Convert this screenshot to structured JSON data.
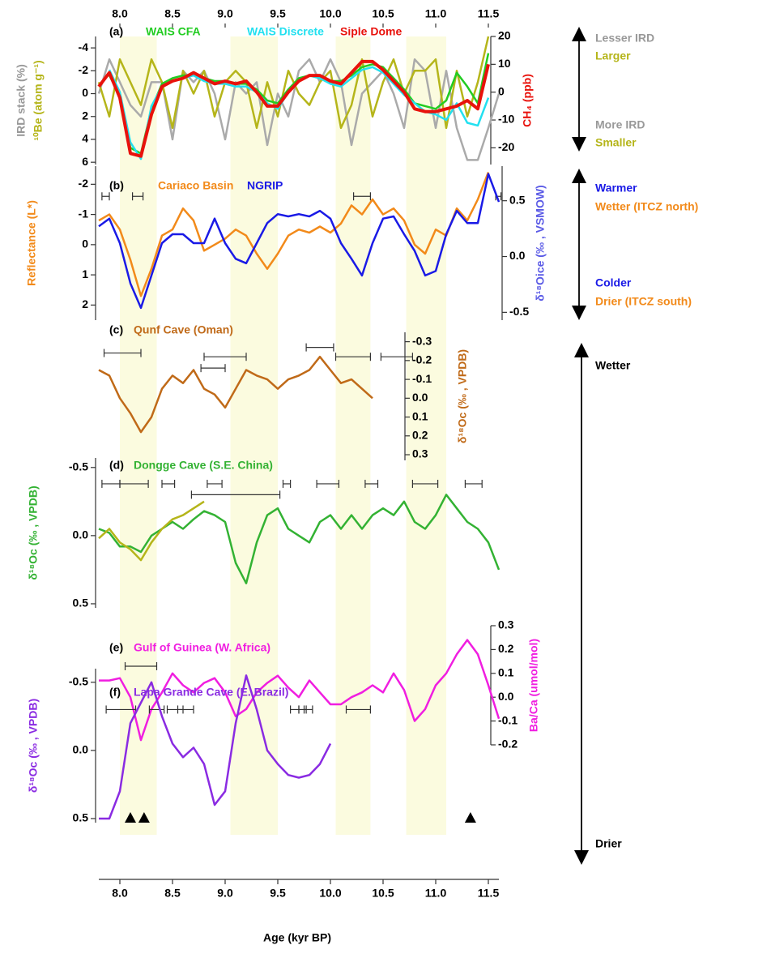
{
  "shaded_intervals": [
    [
      8.0,
      8.35
    ],
    [
      9.05,
      9.5
    ],
    [
      10.05,
      10.38
    ],
    [
      10.72,
      11.1
    ]
  ],
  "annotations": [
    {
      "text": "Lesser IRD",
      "color": "#999999"
    },
    {
      "text": "Larger",
      "color": "#b5b51a"
    },
    {
      "text": "More IRD",
      "color": "#999999"
    },
    {
      "text": "Smaller",
      "color": "#b5b51a"
    },
    {
      "text": "Warmer",
      "color": "#1a1ae6"
    },
    {
      "text": "Wetter (ITCZ north)",
      "color": "#f28a1a"
    },
    {
      "text": "Colder",
      "color": "#1a1ae6"
    },
    {
      "text": "Drier (ITCZ south)",
      "color": "#f28a1a"
    },
    {
      "text": "Wetter",
      "color": "#000000"
    },
    {
      "text": "Drier",
      "color": "#000000"
    }
  ],
  "chart_data": [
    {
      "type": "line",
      "label": "(a)",
      "x": [
        7.8,
        7.9,
        8.0,
        8.1,
        8.2,
        8.3,
        8.4,
        8.5,
        8.6,
        8.7,
        8.8,
        8.9,
        9.0,
        9.1,
        9.2,
        9.3,
        9.4,
        9.5,
        9.6,
        9.7,
        9.8,
        9.9,
        10.0,
        10.1,
        10.2,
        10.3,
        10.4,
        10.5,
        10.6,
        10.7,
        10.8,
        10.9,
        11.0,
        11.1,
        11.2,
        11.3,
        11.4,
        11.5,
        11.6
      ],
      "xlim": [
        7.8,
        11.6
      ],
      "xticks": [
        {
          "value": 8,
          "label": "8.0"
        },
        8.5,
        {
          "value": 9,
          "label": "9.0"
        },
        9.5,
        {
          "value": 10,
          "label": "10.0"
        },
        10.5,
        {
          "value": 11,
          "label": "11.0"
        },
        11.5
      ],
      "ylim": [
        6.2,
        -5
      ],
      "yticks": [
        -4,
        -2,
        0,
        2,
        4,
        6
      ],
      "y2lim": [
        -26,
        20
      ],
      "y2ticks": [
        20,
        10,
        0,
        -10,
        -20
      ],
      "y_labels": [
        {
          "text": "IRD stack (%)",
          "color": "#999999"
        },
        {
          "text": "¹⁰Be (atom g⁻¹)",
          "color": "#b5b51a"
        },
        {
          "text": "CH₄ (ppb)",
          "color": "#e8120c"
        }
      ],
      "series": [
        {
          "values": [
            0,
            -3,
            -1,
            1,
            2,
            -1,
            -1,
            4,
            -2,
            -1,
            -2,
            0,
            4,
            -1,
            0,
            -1,
            4.5,
            0,
            2,
            -2,
            -3,
            -1,
            -3,
            -1,
            4.5,
            0,
            -1,
            -2,
            0,
            3,
            -3,
            -2,
            3,
            -2,
            3,
            5.8,
            5.8,
            3,
            0
          ],
          "color": "#aaaaaa"
        },
        {
          "values": [
            -1,
            2,
            -3,
            -1,
            1,
            -3,
            -1,
            3,
            -2,
            0,
            -2,
            2,
            -1,
            -2,
            -1,
            3,
            -1,
            2,
            -2,
            0,
            1,
            -1,
            -2,
            3,
            1,
            -3,
            2,
            -1,
            -3,
            0,
            -2,
            -2,
            -3,
            3,
            -2,
            2,
            -1,
            -5,
            null
          ],
          "color": "#b5b51a"
        },
        {
          "name": "WAIS CFA",
          "axis": "y2",
          "color": "#22cc22",
          "values": [
            null,
            6,
            -1,
            -20,
            -22,
            -6,
            3,
            5,
            6,
            6,
            5,
            4,
            4,
            3,
            3,
            1,
            -3,
            -4,
            1,
            5,
            6,
            5,
            4,
            4,
            6,
            9,
            10,
            9,
            5,
            1,
            -4,
            -5,
            -6,
            -3,
            7,
            2,
            -4,
            14,
            null
          ]
        },
        {
          "name": "WAIS Discrete",
          "axis": "y2",
          "color": "#22e0f0",
          "values": [
            null,
            8,
            0,
            -18,
            -24,
            -5,
            2,
            4,
            5,
            6,
            4,
            3,
            3,
            2,
            2,
            0,
            -4,
            -6,
            0,
            4,
            6,
            5,
            3,
            2,
            5,
            8,
            9,
            7,
            3,
            -1,
            -4,
            -7,
            -8,
            -10,
            -4,
            -11,
            -12,
            -2,
            null
          ]
        },
        {
          "name": "Siple Dome",
          "axis": "y2",
          "color": "#e8120c",
          "values": [
            2,
            7,
            -2,
            -22,
            -23,
            -8,
            2,
            4,
            5,
            7,
            5,
            3,
            4,
            3,
            4,
            0,
            -5,
            -5,
            0,
            4,
            6,
            6,
            4,
            3,
            7,
            11,
            11,
            8,
            4,
            0,
            -6,
            -7,
            -7,
            -6,
            -5,
            -3,
            -6,
            10,
            null
          ]
        }
      ]
    },
    {
      "type": "line",
      "label": "(b)",
      "x": [
        7.8,
        7.9,
        8.0,
        8.1,
        8.2,
        8.3,
        8.4,
        8.5,
        8.6,
        8.7,
        8.8,
        8.9,
        9.0,
        9.1,
        9.2,
        9.3,
        9.4,
        9.5,
        9.6,
        9.7,
        9.8,
        9.9,
        10.0,
        10.1,
        10.2,
        10.3,
        10.4,
        10.5,
        10.6,
        10.7,
        10.8,
        10.9,
        11.0,
        11.1,
        11.2,
        11.3,
        11.4,
        11.5,
        11.6
      ],
      "ylim": [
        2.5,
        -2.6
      ],
      "yticks": [
        -2,
        -1,
        0,
        1,
        2
      ],
      "y2lim": [
        -0.57,
        0.81
      ],
      "y2ticks": [
        0.5,
        {
          "value": 0,
          "label": "0.0"
        },
        -0.5
      ],
      "y_labels": [
        {
          "text": "Reflectance (L*)",
          "color": "#f28a1a"
        },
        {
          "text": "δ¹⁸Oice (‰ , VSMOW)",
          "color": "#5a5ae6"
        }
      ],
      "age_error_bars": [
        [
          7.83,
          7.9,
          -1.6
        ],
        [
          8.12,
          8.22,
          -1.6
        ],
        [
          10.22,
          10.38,
          -1.6
        ],
        [
          11.57,
          11.62,
          -1.6
        ]
      ],
      "series": [
        {
          "name": "Cariaco Basin",
          "color": "#f28a1a",
          "values": [
            -0.8,
            -1.0,
            -0.5,
            0.5,
            1.7,
            0.8,
            -0.3,
            -0.5,
            -1.2,
            -0.8,
            0.2,
            0,
            -0.2,
            -0.5,
            -0.3,
            0.3,
            0.8,
            0.3,
            -0.3,
            -0.5,
            -0.4,
            -0.6,
            -0.4,
            -0.7,
            -1.3,
            -1.0,
            -1.5,
            -1.0,
            -1.2,
            -0.8,
            0,
            0.3,
            -0.5,
            -0.3,
            -1.2,
            -0.8,
            -1.5,
            -2.4,
            null
          ]
        },
        {
          "name": "NGRIP",
          "axis": "y2",
          "color": "#1a1ae6",
          "values": [
            0.27,
            0.34,
            0.12,
            -0.24,
            -0.46,
            -0.17,
            0.12,
            0.2,
            0.2,
            0.12,
            0.12,
            0.34,
            0.12,
            -0.02,
            -0.06,
            0.12,
            0.3,
            0.38,
            0.36,
            0.38,
            0.36,
            0.41,
            0.34,
            0.12,
            -0.02,
            -0.17,
            0.12,
            0.34,
            0.36,
            0.2,
            0.05,
            -0.17,
            -0.13,
            0.2,
            0.41,
            0.3,
            0.3,
            0.74,
            0.49
          ]
        }
      ]
    },
    {
      "type": "line",
      "label": "(c)",
      "title": "Qunf Cave (Oman)",
      "x": [
        7.8,
        7.9,
        8.0,
        8.1,
        8.2,
        8.3,
        8.4,
        8.5,
        8.6,
        8.7,
        8.8,
        8.9,
        9.0,
        9.1,
        9.2,
        9.3,
        9.4,
        9.5,
        9.6,
        9.7,
        9.8,
        9.9,
        10.0,
        10.1,
        10.2,
        10.3,
        10.4,
        10.5,
        10.6,
        10.7,
        10.8,
        10.9,
        11.0,
        11.1,
        11.2,
        11.3,
        11.4,
        11.5,
        11.6
      ],
      "y2lim": [
        0.33,
        -0.35
      ],
      "y2ticks": [
        -0.3,
        -0.2,
        -0.1,
        {
          "value": 0,
          "label": "0.0"
        },
        0.1,
        0.2,
        0.3
      ],
      "y_labels": [
        {
          "text": "δ¹⁸Oc (‰ , VPDB)",
          "color": "#c06a18"
        }
      ],
      "age_error_bars": [
        [
          7.85,
          8.2,
          -0.24
        ],
        [
          8.8,
          9.2,
          -0.22
        ],
        [
          8.77,
          9.0,
          -0.16
        ],
        [
          9.77,
          10.03,
          -0.27
        ],
        [
          10.05,
          10.38,
          -0.22
        ],
        [
          10.48,
          10.78,
          -0.22
        ]
      ],
      "series": [
        {
          "axis": "y2",
          "color": "#c06a18",
          "values": [
            -0.15,
            -0.12,
            0,
            0.08,
            0.18,
            0.1,
            -0.05,
            -0.12,
            -0.08,
            -0.15,
            -0.05,
            -0.02,
            0.05,
            -0.05,
            -0.15,
            -0.12,
            -0.1,
            -0.05,
            -0.1,
            -0.12,
            -0.15,
            -0.22,
            -0.15,
            -0.08,
            -0.1,
            -0.05,
            0,
            null,
            null,
            null,
            null,
            null,
            null,
            null,
            null,
            null,
            null,
            null,
            null
          ]
        }
      ]
    },
    {
      "type": "line",
      "label": "(d)",
      "title": "Dongge Cave (S.E. China)",
      "x": [
        7.8,
        7.9,
        8.0,
        8.1,
        8.2,
        8.3,
        8.4,
        8.5,
        8.6,
        8.7,
        8.8,
        8.9,
        9.0,
        9.1,
        9.2,
        9.3,
        9.4,
        9.5,
        9.6,
        9.7,
        9.8,
        9.9,
        10.0,
        10.1,
        10.2,
        10.3,
        10.4,
        10.5,
        10.6,
        10.7,
        10.8,
        10.9,
        11.0,
        11.1,
        11.2,
        11.3,
        11.4,
        11.5,
        11.6
      ],
      "ylim": [
        0.53,
        -0.57
      ],
      "yticks": [
        -0.5,
        {
          "value": 0,
          "label": "0.0"
        },
        0.5
      ],
      "y_labels": [
        {
          "text": "δ¹⁸Oc (‰ , VPDB)",
          "color": "#33b233"
        }
      ],
      "age_error_bars": [
        [
          7.83,
          8.0,
          -0.38
        ],
        [
          8.0,
          8.27,
          -0.38
        ],
        [
          8.4,
          8.52,
          -0.38
        ],
        [
          8.83,
          8.97,
          -0.38
        ],
        [
          9.55,
          9.62,
          -0.38
        ],
        [
          9.87,
          10.08,
          -0.38
        ],
        [
          10.33,
          10.45,
          -0.38
        ],
        [
          10.78,
          11.02,
          -0.38
        ],
        [
          11.28,
          11.44,
          -0.38
        ],
        [
          8.68,
          9.52,
          -0.3
        ]
      ],
      "series": [
        {
          "color": "#33b233",
          "values": [
            -0.05,
            -0.02,
            0.08,
            0.08,
            0.12,
            0.0,
            -0.05,
            -0.1,
            -0.05,
            -0.12,
            -0.18,
            -0.15,
            -0.1,
            0.2,
            0.35,
            0.05,
            -0.15,
            -0.2,
            -0.05,
            0.0,
            0.05,
            -0.1,
            -0.15,
            -0.05,
            -0.15,
            -0.05,
            -0.15,
            -0.2,
            -0.15,
            -0.25,
            -0.1,
            -0.05,
            -0.15,
            -0.3,
            -0.2,
            -0.1,
            -0.05,
            0.05,
            0.25
          ]
        },
        {
          "color": "#b5b51a",
          "values": [
            0.02,
            -0.05,
            0.05,
            0.1,
            0.18,
            0.05,
            -0.05,
            -0.12,
            -0.15,
            -0.2,
            -0.25,
            null,
            null,
            null,
            null,
            null,
            null,
            null,
            null,
            null,
            null,
            null,
            null,
            null,
            null,
            null,
            null,
            null,
            null,
            null,
            null,
            null,
            null,
            null,
            null,
            null,
            null,
            null,
            null
          ]
        }
      ]
    },
    {
      "type": "line",
      "label": "(e)",
      "title": "Gulf of Guinea (W. Africa)",
      "x": [
        7.8,
        7.9,
        8.0,
        8.1,
        8.2,
        8.3,
        8.4,
        8.5,
        8.6,
        8.7,
        8.8,
        8.9,
        9.0,
        9.1,
        9.2,
        9.3,
        9.4,
        9.5,
        9.6,
        9.7,
        9.8,
        9.9,
        10.0,
        10.1,
        10.2,
        10.3,
        10.4,
        10.5,
        10.6,
        10.7,
        10.8,
        10.9,
        11.0,
        11.1,
        11.2,
        11.3,
        11.4,
        11.5,
        11.6
      ],
      "y2lim": [
        -0.2,
        0.3
      ],
      "y2ticks": [
        0.3,
        0.2,
        0.1,
        {
          "value": 0,
          "label": "0.0"
        },
        -0.1,
        -0.2
      ],
      "y_labels": [
        {
          "text": "Ba/Ca (umol/mol)",
          "color": "#f01ee0"
        }
      ],
      "age_error_bars": [
        [
          8.05,
          8.35,
          0.13
        ]
      ],
      "series": [
        {
          "axis": "y2",
          "color": "#f01ee0",
          "values": [
            0.07,
            0.07,
            0.08,
            0.0,
            -0.18,
            -0.05,
            0.02,
            0.1,
            0.05,
            0.02,
            0.06,
            0.08,
            0.02,
            -0.08,
            -0.05,
            0.02,
            0.06,
            0.09,
            0.04,
            0.0,
            0.07,
            0.02,
            -0.03,
            -0.03,
            0.0,
            0.02,
            0.05,
            0.02,
            0.1,
            0.03,
            -0.1,
            -0.05,
            0.05,
            0.1,
            0.18,
            0.24,
            0.18,
            0.05,
            -0.09
          ]
        }
      ]
    },
    {
      "type": "line",
      "label": "(f)",
      "title": "Lapa Grande Cave (E. Brazil)",
      "x": [
        7.8,
        7.9,
        8.0,
        8.1,
        8.2,
        8.3,
        8.4,
        8.5,
        8.6,
        8.7,
        8.8,
        8.9,
        9.0,
        9.1,
        9.2,
        9.3,
        9.4,
        9.5,
        9.6,
        9.7,
        9.8,
        9.9,
        10.0,
        10.1,
        10.2,
        10.3,
        10.4,
        10.5,
        10.6,
        10.7,
        10.8,
        10.9,
        11.0,
        11.1,
        11.2,
        11.3,
        11.4,
        11.5,
        11.6
      ],
      "xlim": [
        7.8,
        11.6
      ],
      "xticks": [
        {
          "value": 8,
          "label": "8.0"
        },
        8.5,
        {
          "value": 9,
          "label": "9.0"
        },
        9.5,
        {
          "value": 10,
          "label": "10.0"
        },
        10.5,
        {
          "value": 11,
          "label": "11.0"
        },
        11.5
      ],
      "x_label": "Age (kyr BP)",
      "ylim": [
        0.53,
        -0.6
      ],
      "yticks": [
        -0.5,
        {
          "value": 0,
          "label": "0.0"
        },
        0.5
      ],
      "y_labels": [
        {
          "text": "δ¹⁸Oc (‰ , VPDB)",
          "color": "#8a2be2"
        }
      ],
      "age_error_bars": [
        [
          7.87,
          8.15,
          -0.3
        ],
        [
          8.28,
          8.42,
          -0.3
        ],
        [
          8.45,
          8.6,
          -0.3
        ],
        [
          8.55,
          8.7,
          -0.3
        ],
        [
          9.62,
          9.7,
          -0.3
        ],
        [
          9.7,
          9.77,
          -0.3
        ],
        [
          9.75,
          9.83,
          -0.3
        ],
        [
          10.15,
          10.38,
          -0.3
        ]
      ],
      "markers": [
        8.1,
        8.23,
        11.33
      ],
      "series": [
        {
          "color": "#8a2be2",
          "values": [
            0.5,
            0.5,
            0.3,
            -0.2,
            -0.35,
            -0.5,
            -0.25,
            -0.05,
            0.05,
            -0.02,
            0.1,
            0.4,
            0.3,
            -0.2,
            -0.55,
            -0.3,
            0.0,
            0.1,
            0.18,
            0.2,
            0.18,
            0.1,
            -0.05,
            null,
            null,
            null,
            null,
            null,
            null,
            null,
            null,
            null,
            null,
            null,
            null,
            null,
            null,
            null,
            null
          ]
        }
      ]
    }
  ]
}
